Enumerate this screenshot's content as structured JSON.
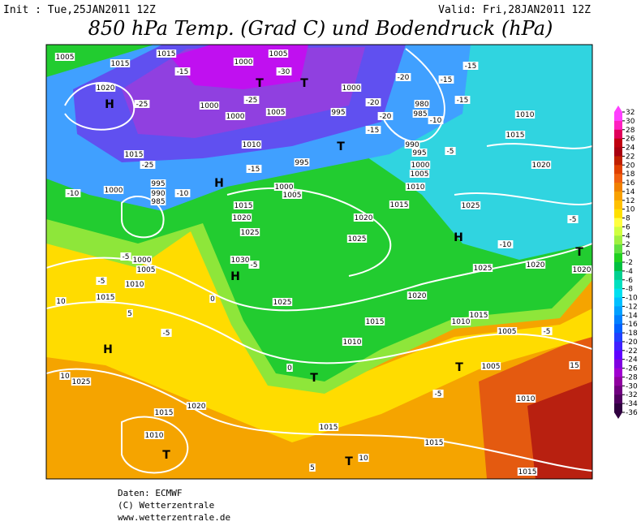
{
  "header": {
    "init": "Init : Tue,25JAN2011 12Z",
    "valid": "Valid: Fri,28JAN2011 12Z",
    "title": "850 hPa Temp. (Grad C) und Bodendruck (hPa)"
  },
  "map": {
    "labels": [
      "1005",
      "1015",
      "1020",
      "H",
      "-25",
      "1015",
      "-25",
      "1000",
      "-10",
      "995",
      "990",
      "985",
      "-10",
      "1015",
      "1020",
      "1025",
      "1030",
      "H",
      "-5",
      "-5",
      "1000",
      "1005",
      "1010",
      "-5",
      "1015",
      "10",
      "5",
      "-5",
      "H",
      "10",
      "1025",
      "1020",
      "1015",
      "1010",
      "T",
      "1015",
      "T",
      "10",
      "1015",
      "1015",
      "1010",
      "1005",
      "T",
      "15",
      "-5",
      "1005",
      "1015",
      "1010",
      "1025",
      "1015",
      "1010",
      "1020",
      "1025",
      "1020",
      "1020",
      "T",
      "-5",
      "-10",
      "H",
      "1025",
      "1020",
      "1015",
      "1010",
      "1000",
      "1005",
      "H",
      "1020",
      "1025",
      "1015",
      "1010",
      "1005",
      "1000",
      "995",
      "990",
      "-5",
      "-15",
      "995",
      "1000",
      "-20",
      "T",
      "-20",
      "980",
      "985",
      "-10",
      "-15",
      "-15",
      "-15",
      "-20",
      "1005",
      "-30",
      "T",
      "T",
      "-25",
      "1000",
      "1000",
      "1005",
      "1010",
      "-15",
      "995",
      "1015",
      "-15",
      "1000",
      "0",
      "0",
      "T",
      "-5",
      "5"
    ]
  },
  "colorbar": {
    "ticks": [
      32,
      30,
      28,
      26,
      24,
      22,
      20,
      18,
      16,
      14,
      12,
      10,
      8,
      6,
      4,
      2,
      0,
      -2,
      -4,
      -6,
      -8,
      -10,
      -12,
      -14,
      -16,
      -18,
      -20,
      -22,
      -24,
      -26,
      -28,
      -30,
      -32,
      -34,
      -36
    ],
    "colors": [
      "#ff40ff",
      "#ff20c0",
      "#e0005a",
      "#c00010",
      "#a80010",
      "#c02000",
      "#e04000",
      "#f06010",
      "#f08000",
      "#f8a000",
      "#ffc000",
      "#ffe000",
      "#ffff40",
      "#d0ff40",
      "#a0f040",
      "#60e040",
      "#20d020",
      "#00c040",
      "#00d090",
      "#00e0c0",
      "#00e0f0",
      "#00c0ff",
      "#00a0ff",
      "#0080ff",
      "#0060ff",
      "#2040ff",
      "#4020ff",
      "#6000ff",
      "#8000e0",
      "#a000d0",
      "#9000a0",
      "#700080",
      "#500060",
      "#300040"
    ]
  },
  "footer": [
    "Daten: ECMWF",
    "(C) Wetterzentrale",
    "www.wetterzentrale.de"
  ]
}
